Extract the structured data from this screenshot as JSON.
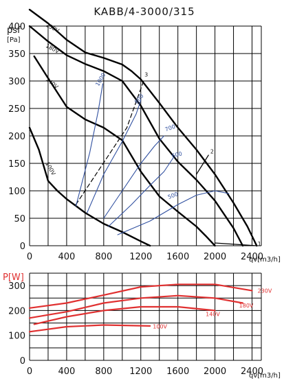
{
  "chart_data": [
    {
      "type": "line",
      "title": "KABB/4-3000/315",
      "ylabel": "psf",
      "ylabel_unit": "[Pa]",
      "xlabel": "qv[m3/h]",
      "xlim": [
        0,
        2500
      ],
      "ylim": [
        0,
        400
      ],
      "xticks": [
        0,
        400,
        800,
        1200,
        1600,
        2000,
        2400
      ],
      "yticks": [
        0,
        50,
        100,
        150,
        200,
        250,
        300,
        350,
        400
      ],
      "grid": true,
      "series": [
        {
          "name": "230V",
          "color": "#000000",
          "x": [
            0,
            200,
            400,
            600,
            800,
            1000,
            1100,
            1200,
            1400,
            1600,
            1800,
            2000,
            2200,
            2350,
            2450
          ],
          "y": [
            430,
            405,
            375,
            352,
            342,
            330,
            318,
            303,
            260,
            215,
            175,
            130,
            78,
            35,
            0
          ]
        },
        {
          "name": "180V",
          "color": "#000000",
          "x": [
            0,
            200,
            400,
            600,
            800,
            1000,
            1200,
            1400,
            1600,
            1800,
            2000,
            2200,
            2300
          ],
          "y": [
            400,
            372,
            347,
            331,
            318,
            300,
            255,
            195,
            153,
            120,
            82,
            32,
            0
          ]
        },
        {
          "name": "140V",
          "color": "#000000",
          "x": [
            50,
            200,
            400,
            600,
            800,
            1000,
            1200,
            1400,
            1600,
            1800,
            1900,
            2000
          ],
          "y": [
            345,
            305,
            253,
            230,
            215,
            192,
            135,
            90,
            62,
            35,
            18,
            0
          ]
        },
        {
          "name": "100V",
          "color": "#000000",
          "x": [
            0,
            100,
            200,
            300,
            400,
            600,
            800,
            1000,
            1200,
            1300
          ],
          "y": [
            215,
            175,
            118,
            100,
            85,
            60,
            40,
            25,
            8,
            0
          ]
        },
        {
          "name": "1",
          "color": "#000000",
          "x": [
            2000,
            2450
          ],
          "y": [
            5,
            0
          ]
        },
        {
          "name": "2",
          "color": "#000000",
          "x": [
            1800,
            1930
          ],
          "y": [
            130,
            165
          ]
        },
        {
          "name": "3",
          "color": "#000000",
          "dashed": true,
          "x": [
            500,
            1050,
            1230
          ],
          "y": [
            75,
            215,
            300
          ]
        },
        {
          "name": "1000",
          "color": "#3050a0",
          "x": [
            500,
            650,
            740,
            790
          ],
          "y": [
            72,
            170,
            245,
            295
          ]
        },
        {
          "name": "800",
          "color": "#3050a0",
          "x": [
            620,
            800,
            1000,
            1150,
            1200
          ],
          "y": [
            60,
            130,
            190,
            240,
            265
          ]
        },
        {
          "name": "700",
          "color": "#3050a0",
          "x": [
            800,
            1000,
            1200,
            1350,
            1450
          ],
          "y": [
            50,
            100,
            150,
            182,
            200
          ]
        },
        {
          "name": "600",
          "color": "#3050a0",
          "x": [
            850,
            1100,
            1300,
            1450,
            1550
          ],
          "y": [
            35,
            75,
            110,
            135,
            160
          ]
        },
        {
          "name": "500",
          "color": "#3050a0",
          "x": [
            950,
            1300,
            1600,
            1800,
            2000,
            2150
          ],
          "y": [
            20,
            45,
            75,
            92,
            100,
            95
          ]
        }
      ],
      "curve_labels": [
        "230V",
        "180V",
        "140V",
        "100V",
        "1",
        "2",
        "3",
        "1000",
        "800",
        "700",
        "600",
        "500"
      ]
    },
    {
      "type": "line",
      "ylabel": "P[W]",
      "xlabel": "qv[m3/h]",
      "xlim": [
        0,
        2500
      ],
      "ylim": [
        0,
        350
      ],
      "xticks": [
        0,
        400,
        800,
        1200,
        1600,
        2000,
        2400
      ],
      "yticks": [
        0,
        100,
        200,
        300
      ],
      "grid": true,
      "series": [
        {
          "name": "230V",
          "color": "#e03030",
          "x": [
            0,
            400,
            800,
            1200,
            1600,
            2000,
            2400
          ],
          "y": [
            210,
            230,
            262,
            295,
            305,
            305,
            280
          ]
        },
        {
          "name": "180V",
          "color": "#e03030",
          "x": [
            0,
            400,
            800,
            1200,
            1600,
            2000,
            2300
          ],
          "y": [
            170,
            195,
            230,
            250,
            260,
            250,
            230
          ]
        },
        {
          "name": "140V",
          "color": "#e03030",
          "x": [
            50,
            400,
            800,
            1200,
            1600,
            2000
          ],
          "y": [
            145,
            175,
            200,
            215,
            215,
            200
          ]
        },
        {
          "name": "100V",
          "color": "#e03030",
          "x": [
            0,
            400,
            800,
            1300
          ],
          "y": [
            115,
            135,
            142,
            138
          ]
        }
      ],
      "curve_labels": [
        "230V",
        "180V",
        "140V",
        "100V"
      ]
    }
  ]
}
